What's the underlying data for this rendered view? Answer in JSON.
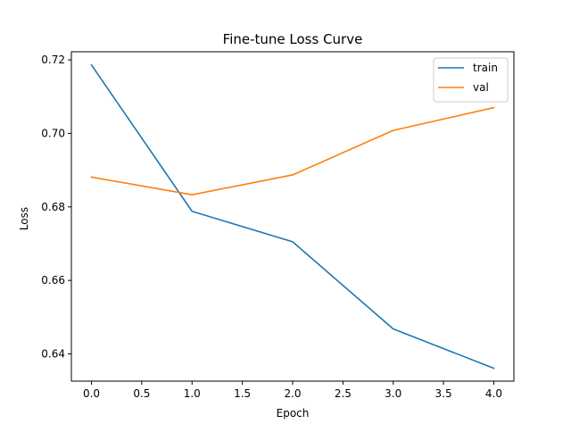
{
  "chart_data": {
    "type": "line",
    "title": "Fine-tune Loss Curve",
    "xlabel": "Epoch",
    "ylabel": "Loss",
    "x": [
      0,
      1,
      2,
      3,
      4
    ],
    "series": [
      {
        "name": "train",
        "color": "#1f77b4",
        "values": [
          0.7186,
          0.6788,
          0.6705,
          0.6468,
          0.6361
        ]
      },
      {
        "name": "val",
        "color": "#ff7f0e",
        "values": [
          0.6881,
          0.6833,
          0.6887,
          0.7008,
          0.707
        ]
      }
    ],
    "xlim": [
      -0.2,
      4.2
    ],
    "ylim": [
      0.6326,
      0.7222
    ],
    "xticks": [
      0,
      0.5,
      1,
      1.5,
      2,
      2.5,
      3,
      3.5,
      4
    ],
    "xtick_labels": [
      "0.0",
      "0.5",
      "1.0",
      "1.5",
      "2.0",
      "2.5",
      "3.0",
      "3.5",
      "4.0"
    ],
    "yticks": [
      0.64,
      0.66,
      0.68,
      0.7,
      0.72
    ],
    "ytick_labels": [
      "0.64",
      "0.66",
      "0.68",
      "0.70",
      "0.72"
    ],
    "grid": false,
    "legend_position": "top-right"
  }
}
